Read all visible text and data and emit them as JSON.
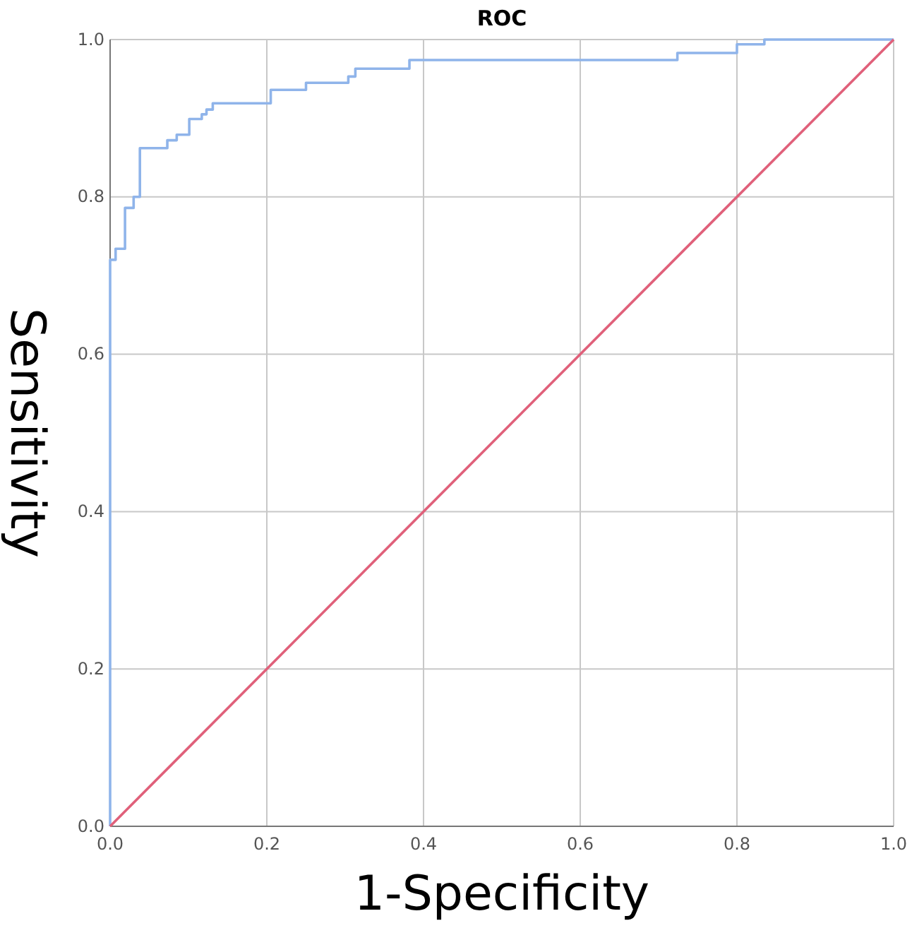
{
  "chart_data": {
    "type": "line",
    "title": "ROC",
    "xlabel": "1-Specificity",
    "ylabel": "Sensitivity",
    "xlim": [
      0,
      1
    ],
    "ylim": [
      0,
      1
    ],
    "xticks": [
      {
        "value": 0,
        "label": "0.0"
      },
      {
        "value": 0.2,
        "label": "0.2"
      },
      {
        "value": 0.4,
        "label": "0.4"
      },
      {
        "value": 0.6,
        "label": "0.6"
      },
      {
        "value": 0.8,
        "label": "0.8"
      },
      {
        "value": 1,
        "label": "1.0"
      }
    ],
    "yticks": [
      {
        "value": 0,
        "label": "0.0"
      },
      {
        "value": 0.2,
        "label": "0.2"
      },
      {
        "value": 0.4,
        "label": "0.4"
      },
      {
        "value": 0.6,
        "label": "0.6"
      },
      {
        "value": 0.8,
        "label": "0.8"
      },
      {
        "value": 1,
        "label": "1.0"
      }
    ],
    "grid": true,
    "marker": "none",
    "series": [
      {
        "type": "step",
        "color": "#8fb4ea",
        "x": [
          0,
          0,
          0.007,
          0.019,
          0.03,
          0.038,
          0.073,
          0.085,
          0.101,
          0.117,
          0.123,
          0.131,
          0.205,
          0.25,
          0.304,
          0.313,
          0.382,
          0.724,
          0.8,
          0.835,
          1
        ],
        "values": [
          0,
          0.72,
          0.734,
          0.786,
          0.8,
          0.862,
          0.872,
          0.879,
          0.899,
          0.905,
          0.911,
          0.919,
          0.936,
          0.945,
          0.953,
          0.963,
          0.974,
          0.983,
          0.994,
          1,
          1
        ]
      },
      {
        "color": "#e0607a",
        "x": [
          0,
          1
        ],
        "values": [
          0,
          1
        ]
      }
    ]
  }
}
